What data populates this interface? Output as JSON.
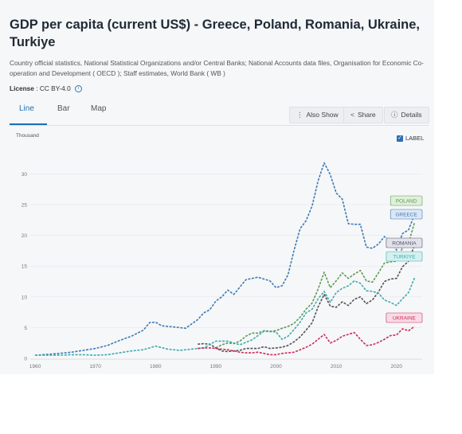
{
  "header": {
    "title": "GDP per capita (current US$) - Greece, Poland, Romania, Ukraine, Turkiye",
    "source": "Country official statistics, National Statistical Organizations and/or Central Banks; National Accounts data files, Organisation for Economic Co-operation and Development ( OECD ); Staff estimates, World Bank ( WB )",
    "license_label": "License",
    "license_value": ": CC BY-4.0"
  },
  "tabs": [
    {
      "label": "Line",
      "active": true
    },
    {
      "label": "Bar",
      "active": false
    },
    {
      "label": "Map",
      "active": false
    }
  ],
  "actions": {
    "also_show": "Also Show",
    "share": "Share",
    "details": "Details"
  },
  "label_toggle": {
    "label": "LABEL",
    "checked": true
  },
  "colors": {
    "accent": "#1f6fb2",
    "greece": "#3d7ab5",
    "poland": "#5f9a55",
    "romania": "#545459",
    "turkiye": "#3eabaf",
    "ukraine": "#d02c56"
  },
  "chart_data": {
    "type": "line",
    "ylabel": "Thousand",
    "ylim": [
      0,
      33
    ],
    "xlim": [
      1960,
      2024
    ],
    "yticks": [
      "0",
      "5",
      "10",
      "15",
      "20",
      "25",
      "30"
    ],
    "xticks": [
      "1960",
      "1970",
      "1980",
      "1990",
      "2000",
      "2010",
      "2020"
    ],
    "grid": true,
    "series": [
      {
        "name": "GREECE",
        "color": "#3d7ab5",
        "label_bg": "#dde7f5",
        "x": [
          1960,
          1962,
          1964,
          1966,
          1968,
          1970,
          1972,
          1974,
          1976,
          1978,
          1979,
          1980,
          1981,
          1983,
          1985,
          1987,
          1988,
          1989,
          1990,
          1991,
          1992,
          1993,
          1995,
          1997,
          1999,
          2000,
          2001,
          2002,
          2003,
          2004,
          2005,
          2006,
          2007,
          2008,
          2009,
          2010,
          2011,
          2012,
          2013,
          2014,
          2015,
          2016,
          2017,
          2018,
          2019,
          2020,
          2021,
          2022,
          2023
        ],
        "y": [
          0.5,
          0.65,
          0.8,
          1.0,
          1.3,
          1.6,
          2.1,
          2.9,
          3.6,
          4.6,
          5.8,
          5.9,
          5.3,
          5.1,
          4.9,
          6.3,
          7.4,
          7.9,
          9.3,
          10.0,
          11.1,
          10.4,
          12.8,
          13.2,
          12.6,
          11.5,
          11.8,
          13.6,
          17.6,
          21.1,
          22.4,
          24.8,
          28.9,
          31.8,
          29.9,
          26.9,
          25.9,
          21.9,
          21.8,
          21.8,
          18.1,
          17.9,
          18.6,
          19.8,
          19.2,
          17.6,
          20.3,
          20.9,
          23.4
        ]
      },
      {
        "name": "POLAND",
        "color": "#5f9a55",
        "label_bg": "#dff0da",
        "x": [
          1990,
          1991,
          1992,
          1993,
          1994,
          1995,
          1996,
          1997,
          1998,
          1999,
          2000,
          2001,
          2002,
          2003,
          2004,
          2005,
          2006,
          2007,
          2008,
          2009,
          2010,
          2011,
          2012,
          2013,
          2014,
          2015,
          2016,
          2017,
          2018,
          2019,
          2020,
          2021,
          2022,
          2023
        ],
        "y": [
          1.7,
          2.2,
          2.5,
          2.4,
          2.8,
          3.6,
          4.1,
          4.1,
          4.5,
          4.4,
          4.5,
          4.9,
          5.2,
          5.7,
          6.7,
          8.0,
          9.0,
          11.3,
          14.0,
          11.5,
          12.6,
          13.9,
          13.0,
          13.7,
          14.3,
          12.6,
          12.4,
          13.9,
          15.5,
          15.7,
          15.8,
          18.0,
          18.7,
          22.1
        ]
      },
      {
        "name": "ROMANIA",
        "color": "#545459",
        "label_bg": "#e2e2ef",
        "x": [
          1987,
          1988,
          1989,
          1990,
          1991,
          1992,
          1993,
          1994,
          1995,
          1996,
          1997,
          1998,
          1999,
          2000,
          2001,
          2002,
          2003,
          2004,
          2005,
          2006,
          2007,
          2008,
          2009,
          2010,
          2011,
          2012,
          2013,
          2014,
          2015,
          2016,
          2017,
          2018,
          2019,
          2020,
          2021,
          2022,
          2023
        ],
        "y": [
          2.3,
          2.4,
          2.3,
          1.7,
          1.2,
          1.1,
          1.2,
          1.3,
          1.6,
          1.6,
          1.6,
          1.9,
          1.6,
          1.7,
          1.8,
          2.1,
          2.7,
          3.5,
          4.6,
          5.8,
          8.4,
          10.4,
          8.5,
          8.3,
          9.2,
          8.6,
          9.6,
          10.0,
          8.9,
          9.5,
          10.8,
          12.5,
          12.9,
          13.0,
          14.9,
          15.8,
          18.4
        ]
      },
      {
        "name": "TURKIYE",
        "color": "#3eabaf",
        "label_bg": "#d5f0ef",
        "x": [
          1960,
          1962,
          1964,
          1966,
          1968,
          1970,
          1972,
          1974,
          1976,
          1978,
          1979,
          1980,
          1982,
          1984,
          1986,
          1988,
          1990,
          1992,
          1994,
          1996,
          1998,
          2000,
          2001,
          2002,
          2003,
          2004,
          2005,
          2006,
          2007,
          2008,
          2009,
          2010,
          2011,
          2012,
          2013,
          2014,
          2015,
          2016,
          2017,
          2018,
          2019,
          2020,
          2021,
          2022,
          2023
        ],
        "y": [
          0.5,
          0.5,
          0.5,
          0.6,
          0.6,
          0.5,
          0.6,
          0.9,
          1.2,
          1.4,
          1.7,
          2.0,
          1.5,
          1.3,
          1.5,
          1.7,
          2.8,
          2.8,
          2.2,
          3.0,
          4.4,
          4.3,
          3.1,
          3.6,
          4.7,
          5.9,
          7.4,
          8.0,
          9.7,
          10.9,
          9.1,
          10.7,
          11.4,
          11.8,
          12.6,
          12.2,
          11.0,
          10.9,
          10.6,
          9.5,
          9.1,
          8.6,
          9.7,
          10.7,
          13.1
        ]
      },
      {
        "name": "UKRAINE",
        "color": "#d02c56",
        "label_bg": "#f8dbe5",
        "x": [
          1987,
          1988,
          1989,
          1990,
          1991,
          1992,
          1993,
          1994,
          1995,
          1996,
          1997,
          1998,
          1999,
          2000,
          2001,
          2002,
          2003,
          2004,
          2005,
          2006,
          2007,
          2008,
          2009,
          2010,
          2011,
          2012,
          2013,
          2014,
          2015,
          2016,
          2017,
          2018,
          2019,
          2020,
          2021,
          2022,
          2023
        ],
        "y": [
          1.6,
          1.7,
          1.7,
          1.6,
          1.5,
          1.4,
          1.2,
          1.0,
          0.9,
          0.9,
          1.0,
          0.8,
          0.6,
          0.6,
          0.8,
          0.9,
          1.0,
          1.4,
          1.8,
          2.3,
          3.1,
          3.9,
          2.5,
          2.9,
          3.6,
          3.9,
          4.2,
          3.1,
          2.1,
          2.2,
          2.6,
          3.1,
          3.7,
          3.8,
          4.8,
          4.5,
          5.2
        ]
      }
    ]
  }
}
